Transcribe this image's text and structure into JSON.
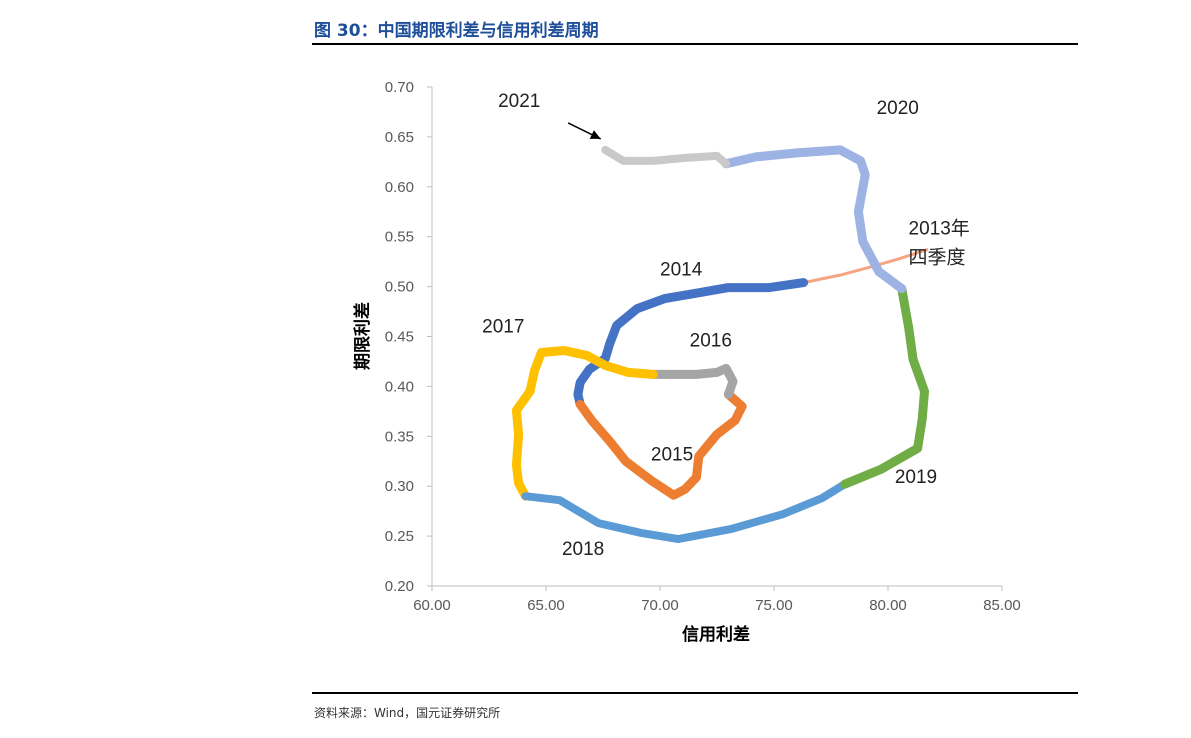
{
  "figure": {
    "title": "图 30：中国期限利差与信用利差周期",
    "source": "资料来源：Wind，国元证券研究所"
  },
  "chart_data": {
    "type": "line",
    "xlabel": "信用利差",
    "ylabel": "期限利差",
    "xlim": [
      60,
      85
    ],
    "ylim": [
      0.2,
      0.7
    ],
    "x_ticks": [
      "60.00",
      "65.00",
      "70.00",
      "75.00",
      "80.00",
      "85.00"
    ],
    "y_ticks": [
      "0.20",
      "0.25",
      "0.30",
      "0.35",
      "0.40",
      "0.45",
      "0.50",
      "0.55",
      "0.60",
      "0.65",
      "0.70"
    ],
    "grid": false,
    "annotations": [
      {
        "text": "2021",
        "x": 62.9,
        "y": 0.68,
        "arrow_to": [
          67.4,
          0.648
        ]
      },
      {
        "text": "2020",
        "x": 79.5,
        "y": 0.673
      },
      {
        "text": "2013年",
        "x": 80.9,
        "y": 0.552
      },
      {
        "text": "四季度",
        "x": 80.9,
        "y": 0.523
      },
      {
        "text": "2014",
        "x": 70.0,
        "y": 0.511
      },
      {
        "text": "2016",
        "x": 71.3,
        "y": 0.44
      },
      {
        "text": "2017",
        "x": 62.2,
        "y": 0.454
      },
      {
        "text": "2015",
        "x": 69.6,
        "y": 0.326
      },
      {
        "text": "2019",
        "x": 80.3,
        "y": 0.303
      },
      {
        "text": "2018",
        "x": 65.7,
        "y": 0.231
      }
    ],
    "series": [
      {
        "name": "2013年四季度",
        "color": "#f4a582",
        "width": 3,
        "points": [
          [
            81.7,
            0.537
          ],
          [
            80.5,
            0.528
          ],
          [
            79.3,
            0.52
          ],
          [
            78.0,
            0.512
          ],
          [
            76.3,
            0.504
          ]
        ]
      },
      {
        "name": "2014",
        "color": "#4472c4",
        "width": 9,
        "points": [
          [
            76.3,
            0.504
          ],
          [
            74.8,
            0.499
          ],
          [
            73.0,
            0.499
          ],
          [
            71.5,
            0.493
          ],
          [
            70.2,
            0.488
          ],
          [
            69.0,
            0.478
          ],
          [
            68.1,
            0.461
          ],
          [
            67.8,
            0.443
          ],
          [
            67.6,
            0.428
          ],
          [
            66.9,
            0.417
          ],
          [
            66.5,
            0.404
          ],
          [
            66.4,
            0.392
          ],
          [
            66.5,
            0.382
          ]
        ]
      },
      {
        "name": "2015",
        "color": "#ed7d31",
        "width": 9,
        "points": [
          [
            66.5,
            0.382
          ],
          [
            67.0,
            0.366
          ],
          [
            67.8,
            0.345
          ],
          [
            68.5,
            0.325
          ],
          [
            69.6,
            0.306
          ],
          [
            70.6,
            0.291
          ],
          [
            71.1,
            0.297
          ],
          [
            71.6,
            0.309
          ],
          [
            71.7,
            0.33
          ],
          [
            72.5,
            0.352
          ],
          [
            73.3,
            0.366
          ],
          [
            73.6,
            0.38
          ],
          [
            73.0,
            0.392
          ]
        ]
      },
      {
        "name": "2016",
        "color": "#a5a5a5",
        "width": 9,
        "points": [
          [
            73.0,
            0.392
          ],
          [
            73.2,
            0.405
          ],
          [
            72.9,
            0.418
          ],
          [
            72.5,
            0.414
          ],
          [
            71.6,
            0.412
          ],
          [
            70.7,
            0.412
          ],
          [
            69.7,
            0.412
          ]
        ]
      },
      {
        "name": "2017",
        "color": "#ffc000",
        "width": 9,
        "points": [
          [
            69.7,
            0.412
          ],
          [
            68.6,
            0.414
          ],
          [
            67.6,
            0.421
          ],
          [
            66.8,
            0.431
          ],
          [
            65.8,
            0.436
          ],
          [
            64.8,
            0.434
          ],
          [
            64.5,
            0.416
          ],
          [
            64.3,
            0.395
          ],
          [
            63.7,
            0.376
          ],
          [
            63.8,
            0.352
          ],
          [
            63.7,
            0.321
          ],
          [
            63.8,
            0.303
          ],
          [
            64.1,
            0.29
          ]
        ]
      },
      {
        "name": "2018",
        "color": "#5b9bd5",
        "width": 8,
        "points": [
          [
            64.1,
            0.29
          ],
          [
            65.6,
            0.286
          ],
          [
            67.3,
            0.263
          ],
          [
            69.2,
            0.253
          ],
          [
            70.8,
            0.247
          ],
          [
            73.1,
            0.257
          ],
          [
            75.4,
            0.272
          ],
          [
            77.1,
            0.288
          ],
          [
            78.1,
            0.302
          ]
        ]
      },
      {
        "name": "2019",
        "color": "#70ad47",
        "width": 9,
        "points": [
          [
            78.1,
            0.302
          ],
          [
            79.7,
            0.317
          ],
          [
            81.3,
            0.338
          ],
          [
            81.5,
            0.367
          ],
          [
            81.6,
            0.395
          ],
          [
            81.1,
            0.427
          ],
          [
            80.9,
            0.46
          ],
          [
            80.6,
            0.498
          ]
        ]
      },
      {
        "name": "2020",
        "color": "#9db3e3",
        "width": 9,
        "points": [
          [
            80.6,
            0.498
          ],
          [
            79.6,
            0.515
          ],
          [
            78.9,
            0.545
          ],
          [
            78.7,
            0.575
          ],
          [
            79.0,
            0.612
          ],
          [
            78.8,
            0.626
          ],
          [
            77.9,
            0.637
          ],
          [
            76.0,
            0.634
          ],
          [
            74.2,
            0.63
          ],
          [
            72.9,
            0.623
          ]
        ]
      },
      {
        "name": "2021",
        "color": "#c9c9c9",
        "width": 8,
        "points": [
          [
            72.9,
            0.623
          ],
          [
            72.5,
            0.631
          ],
          [
            71.1,
            0.629
          ],
          [
            69.7,
            0.626
          ],
          [
            68.4,
            0.626
          ],
          [
            67.6,
            0.637
          ]
        ]
      }
    ]
  }
}
